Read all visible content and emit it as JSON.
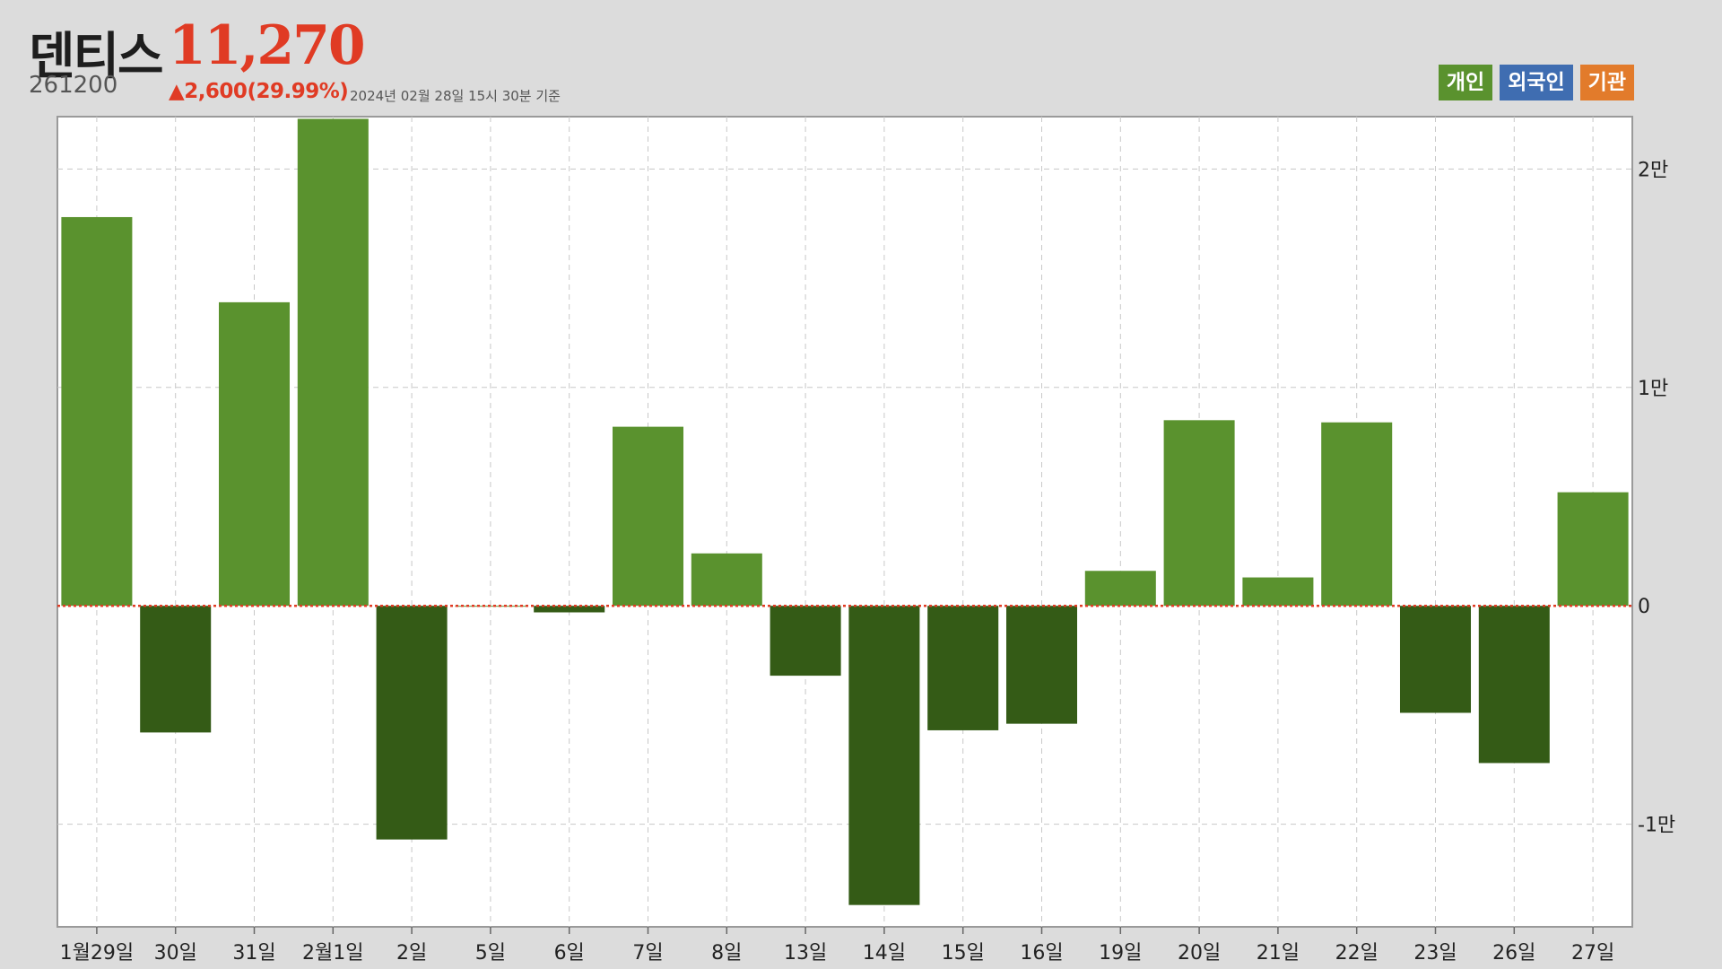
{
  "header": {
    "name": "덴티스",
    "price": "11,270",
    "code": "261200",
    "change": "▲2,600(29.99%)",
    "as_of": "2024년 02월 28일 15시 30분 기준"
  },
  "legend": [
    {
      "label": "개인",
      "color": "#5a922e",
      "icon": "investor-individual"
    },
    {
      "label": "외국인",
      "color": "#3f6db1",
      "icon": "investor-foreign"
    },
    {
      "label": "기관",
      "color": "#e27b2b",
      "icon": "investor-institution"
    }
  ],
  "colors": {
    "positive_bar": "#5a922e",
    "negative_bar": "#345b16",
    "zero_line": "#e03b24",
    "grid": "#c8c8c8",
    "price_up": "#e03b24"
  },
  "chart_data": {
    "type": "bar",
    "title": "",
    "xlabel": "",
    "ylabel": "",
    "categories": [
      "1월29일",
      "30일",
      "31일",
      "2월1일",
      "2일",
      "5일",
      "6일",
      "7일",
      "8일",
      "13일",
      "14일",
      "15일",
      "16일",
      "19일",
      "20일",
      "21일",
      "22일",
      "23일",
      "26일",
      "27일"
    ],
    "series": [
      {
        "name": "개인",
        "values": [
          17800,
          -5800,
          13900,
          22300,
          -10700,
          0,
          -300,
          8200,
          2400,
          -3200,
          -13700,
          -5700,
          -5400,
          1600,
          8500,
          1300,
          8400,
          -4900,
          -7200,
          5200
        ]
      }
    ],
    "ylim": [
      -14700,
      22400
    ],
    "y_ticks": [
      20000,
      10000,
      0,
      -10000
    ],
    "y_tick_labels": [
      "2만",
      "1만",
      "0",
      "-1만"
    ],
    "y_axis_side": "right",
    "grid": true,
    "grid_style": "dashed",
    "zero_line_style": "red dotted"
  }
}
